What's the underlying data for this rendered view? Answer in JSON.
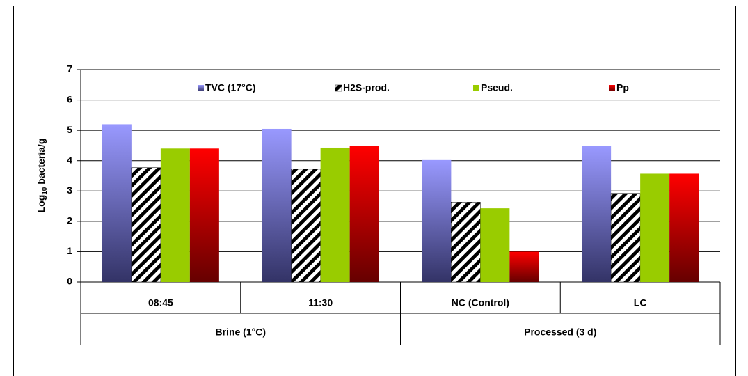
{
  "chart_data": {
    "type": "bar",
    "y_label": [
      "Log",
      "10",
      " bacteria/g"
    ],
    "categories": [
      "08:45",
      "11:30",
      "NC (Control)",
      "LC"
    ],
    "groups": [
      {
        "name": "Brine (1°C)",
        "span": 2
      },
      {
        "name": "Processed (3 d)",
        "span": 2
      }
    ],
    "series": [
      {
        "name": "TVC (17°C)",
        "color": "#9999ff",
        "color_dark": "#333366",
        "values": [
          5.2,
          5.05,
          4.02,
          4.48
        ]
      },
      {
        "name": "H2S-prod.",
        "color": "#ffffff",
        "pattern": "hatch",
        "values": [
          3.77,
          3.72,
          2.63,
          2.92
        ]
      },
      {
        "name": "Pseud.",
        "color": "#99cc00",
        "color_dark": "#99cc00",
        "values": [
          4.4,
          4.43,
          2.43,
          3.57
        ]
      },
      {
        "name": "Pp",
        "color": "#ff0000",
        "color_dark": "#660000",
        "values": [
          4.4,
          4.48,
          1.0,
          3.57
        ]
      }
    ],
    "ylim": [
      0,
      7
    ],
    "yticks": [
      0,
      1,
      2,
      3,
      4,
      5,
      6,
      7
    ],
    "grid": true,
    "legend": "top"
  }
}
